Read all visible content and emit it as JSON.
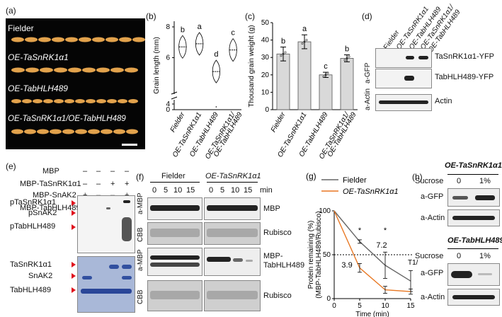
{
  "panels": {
    "a": {
      "letter": "(a)",
      "rows": [
        "Fielder",
        "OE-TaSnRK1α1",
        "OE-TabHLH489",
        "OE-TaSnRK1α1/OE-TabHLH489"
      ]
    },
    "b": {
      "letter": "(b)"
    },
    "c": {
      "letter": "(c)"
    },
    "d": {
      "letter": "(d)",
      "lanes": [
        "Fielder",
        "OE-TaSnRK1α1",
        "OE-TabHLH489",
        "OE-TaSnRK1α1/",
        "OE-TabHLH489"
      ],
      "ab_gfp": "a-GFP",
      "ab_actin": "a-Actin",
      "bands": [
        "TaSnRK1α1-YFP",
        "TabHLH489-YFP",
        "Actin"
      ]
    },
    "e": {
      "letter": "(e)",
      "rows": [
        {
          "label": "MBP",
          "vals": [
            "–",
            "–",
            "–",
            "–"
          ]
        },
        {
          "label": "MBP-TaSnRK1α1",
          "vals": [
            "–",
            "–",
            "+",
            "+"
          ]
        },
        {
          "label": "MBP-SnAK2",
          "vals": [
            "+",
            "–",
            "–",
            "+"
          ]
        },
        {
          "label": "MBP-TabHLH489",
          "vals": [
            "+",
            "+",
            "+",
            "+"
          ]
        }
      ],
      "top_labels": [
        "pTaSnRK1α1",
        "pSnAK2",
        "pTabHLH489"
      ],
      "bottom_labels": [
        "TaSnRK1α1",
        "SnAK2",
        "TabHLH489"
      ]
    },
    "f": {
      "letter": "(f)",
      "group1": "Fielder",
      "group2": "OE-TaSnRK1α1",
      "times": [
        "0",
        "5",
        "10",
        "15"
      ],
      "unit": "min",
      "side_labels": [
        "a-MBP",
        "CBB",
        "a-MBP",
        "CBB"
      ],
      "right_labels": [
        "MBP",
        "Rubisco",
        "MBP-",
        "TabHLH489",
        "Rubisco"
      ]
    },
    "h": {
      "letter": "(h)",
      "title1": "OE-TaSnRK1α1",
      "title2": "OE-TabHLH489",
      "sucrose": "Sucrose",
      "conc": [
        "0",
        "1%"
      ],
      "ab_gfp": "a-GFP",
      "ab_actin": "a-Actin"
    }
  },
  "chart_data": [
    {
      "panel": "b",
      "type": "violin",
      "categories": [
        "Fielder",
        "OE-TaSnRK1α1",
        "OE-TabHLH489",
        "OE-TaSnRK1α1/OE-TabHLH489"
      ],
      "ylabel": "Grain length (mm)",
      "yticks": [
        0,
        4,
        6,
        8
      ],
      "medians": [
        6.7,
        6.9,
        5.1,
        6.5
      ],
      "letters": [
        "b",
        "a",
        "d",
        "c"
      ]
    },
    {
      "panel": "c",
      "type": "bar",
      "categories": [
        "Fielder",
        "OE-TaSnRK1α1",
        "OE-TabHLH489",
        "OE-TaSnRK1α1/OE-TabHLH489"
      ],
      "ylabel": "Thousand grain weight (g)",
      "ylim": [
        0,
        50
      ],
      "yticks": [
        0,
        10,
        20,
        30,
        40,
        50
      ],
      "values": [
        32,
        39,
        20,
        29.5
      ],
      "errors": [
        4,
        4,
        1.5,
        2
      ],
      "letters": [
        "b",
        "a",
        "c",
        "b"
      ]
    },
    {
      "panel": "g",
      "type": "line",
      "xlabel": "Time (min)",
      "ylabel": "Protein remaining (%)",
      "ylabel2": "(MBP-TabHLH489/Rubisco)",
      "x": [
        0,
        5,
        10,
        15
      ],
      "xlim": [
        0,
        15
      ],
      "ylim": [
        0,
        100
      ],
      "yticks": [
        0,
        50,
        100
      ],
      "series": [
        {
          "name": "Fielder",
          "values": [
            100,
            65,
            38,
            20
          ],
          "errors": [
            0,
            2,
            15,
            12
          ],
          "color": "#666666"
        },
        {
          "name": "OE-TaSnRK1α1",
          "values": [
            100,
            35,
            10,
            8
          ],
          "errors": [
            0,
            5,
            4,
            3
          ],
          "color": "#e87722"
        }
      ],
      "annotations": [
        "3.9",
        "7.2",
        "T1/2",
        "*",
        "*"
      ]
    }
  ]
}
